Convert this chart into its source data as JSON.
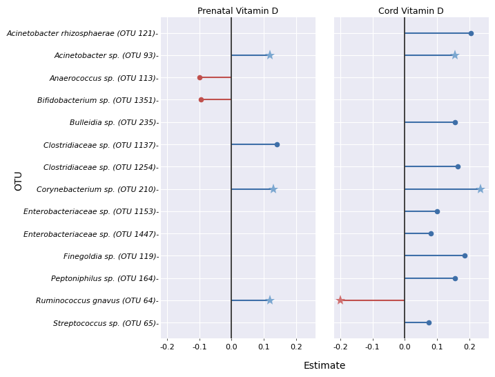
{
  "otus": [
    "Acinetobacter rhizosphaerae (OTU 121)",
    "Acinetobacter sp. (OTU 93)",
    "Anaerococcus sp. (OTU 113)",
    "Bifidobacterium sp. (OTU 1351)",
    "Bulleidia sp. (OTU 235)",
    "Clostridiaceae sp. (OTU 1137)",
    "Clostridiaceae sp. (OTU 1254)",
    "Corynebacterium sp. (OTU 210)",
    "Enterobacteriaceae sp. (OTU 1153)",
    "Enterobacteriaceae sp. (OTU 1447)",
    "Finegoldia sp. (OTU 119)",
    "Peptoniphilus sp. (OTU 164)",
    "Ruminococcus gnavus (OTU 64)",
    "Streptococcus sp. (OTU 65)"
  ],
  "otu_labels": [
    "Acinetobacter rhizosphaerae (OTU 121)-",
    "Acinetobacter sp. (OTU 93)-",
    "Anaerococcus sp. (OTU 113)-",
    "Bifidobacterium sp. (OTU 1351)-",
    "Bulleidia sp. (OTU 235)-",
    "Clostridiaceae sp. (OTU 1137)-",
    "Clostridiaceae sp. (OTU 1254)-",
    "Corynebacterium sp. (OTU 210)-",
    "Enterobacteriaceae sp. (OTU 1153)-",
    "Enterobacteriaceae sp. (OTU 1447)-",
    "Finegoldia sp. (OTU 119)-",
    "Peptoniphilus sp. (OTU 164)-",
    "Ruminococcus gnavus (OTU 64)-",
    "Streptococcus sp. (OTU 65)-"
  ],
  "prenatal": {
    "Acinetobacter rhizosphaerae (OTU 121)": null,
    "Acinetobacter sp. (OTU 93)": {
      "estimate": 0.12,
      "marker": "star",
      "color": "blue"
    },
    "Anaerococcus sp. (OTU 113)": {
      "estimate": -0.1,
      "marker": "dot",
      "color": "red"
    },
    "Bifidobacterium sp. (OTU 1351)": {
      "estimate": -0.095,
      "marker": "dot",
      "color": "red"
    },
    "Bulleidia sp. (OTU 235)": null,
    "Clostridiaceae sp. (OTU 1137)": {
      "estimate": 0.14,
      "marker": "dot",
      "color": "blue"
    },
    "Clostridiaceae sp. (OTU 1254)": null,
    "Corynebacterium sp. (OTU 210)": {
      "estimate": 0.13,
      "marker": "star",
      "color": "blue"
    },
    "Enterobacteriaceae sp. (OTU 1153)": null,
    "Enterobacteriaceae sp. (OTU 1447)": null,
    "Finegoldia sp. (OTU 119)": null,
    "Peptoniphilus sp. (OTU 164)": null,
    "Ruminococcus gnavus (OTU 64)": {
      "estimate": 0.12,
      "marker": "star",
      "color": "blue"
    },
    "Streptococcus sp. (OTU 65)": null
  },
  "cord": {
    "Acinetobacter rhizosphaerae (OTU 121)": {
      "estimate": 0.205,
      "marker": "dot",
      "color": "blue"
    },
    "Acinetobacter sp. (OTU 93)": {
      "estimate": 0.155,
      "marker": "star",
      "color": "blue"
    },
    "Anaerococcus sp. (OTU 113)": null,
    "Bifidobacterium sp. (OTU 1351)": null,
    "Bulleidia sp. (OTU 235)": {
      "estimate": 0.155,
      "marker": "dot",
      "color": "blue"
    },
    "Clostridiaceae sp. (OTU 1137)": null,
    "Clostridiaceae sp. (OTU 1254)": {
      "estimate": 0.165,
      "marker": "dot",
      "color": "blue"
    },
    "Corynebacterium sp. (OTU 210)": {
      "estimate": 0.235,
      "marker": "star",
      "color": "blue"
    },
    "Enterobacteriaceae sp. (OTU 1153)": {
      "estimate": 0.1,
      "marker": "dot",
      "color": "blue"
    },
    "Enterobacteriaceae sp. (OTU 1447)": {
      "estimate": 0.08,
      "marker": "dot",
      "color": "blue"
    },
    "Finegoldia sp. (OTU 119)": {
      "estimate": 0.185,
      "marker": "dot",
      "color": "blue"
    },
    "Peptoniphilus sp. (OTU 164)": {
      "estimate": 0.155,
      "marker": "dot",
      "color": "blue"
    },
    "Ruminococcus gnavus (OTU 64)": {
      "estimate": -0.2,
      "marker": "star",
      "color": "red"
    },
    "Streptococcus sp. (OTU 65)": {
      "estimate": 0.075,
      "marker": "dot",
      "color": "blue"
    }
  },
  "xlim": [
    -0.22,
    0.26
  ],
  "xticks": [
    -0.2,
    -0.1,
    0.0,
    0.1,
    0.2
  ],
  "xticklabels": [
    "-0.2",
    "-0.1",
    "0.0",
    "0.1",
    "0.2"
  ],
  "xlabel": "Estimate",
  "ylabel": "OTU",
  "title_left": "Prenatal Vitamin D",
  "title_right": "Cord Vitamin D",
  "blue_color": "#3E6FA8",
  "red_color": "#C0504D",
  "light_blue_star": "#7BA7D0",
  "light_red_star": "#D07070",
  "bg_color": "#EAEAF4",
  "grid_color": "#FFFFFF",
  "panel_label_fontsize": 9,
  "axis_label_fontsize": 9,
  "tick_label_fontsize": 8,
  "otu_label_fontsize": 7.8
}
